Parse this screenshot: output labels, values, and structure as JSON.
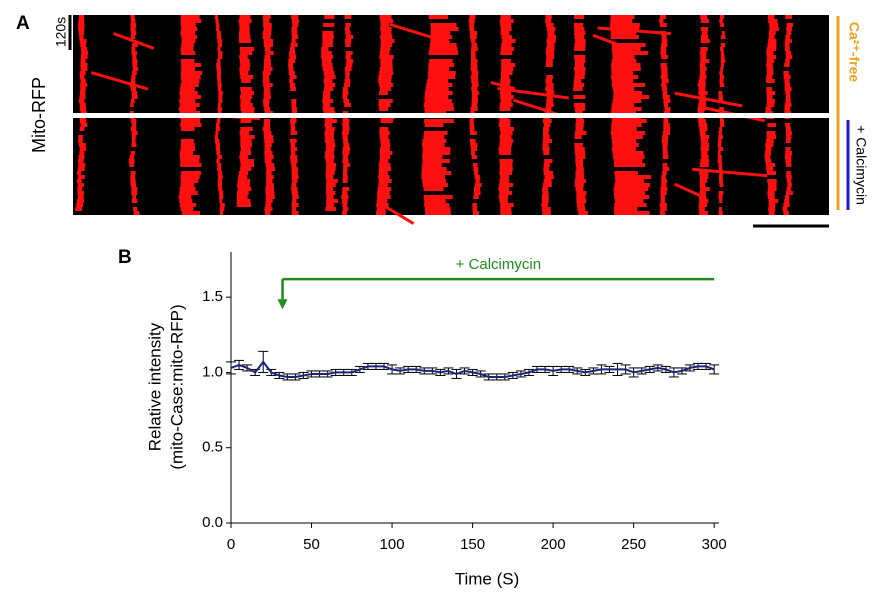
{
  "panel_a": {
    "label": "A",
    "scale_label": "120s",
    "y_label": "Mito-RFP",
    "condition_1": "Ca²⁺-free",
    "condition_2": "+ Calcimycin"
  },
  "chart_data": {
    "type": "line",
    "panel_label": "B",
    "xlabel": "Time (S)",
    "ylabel": [
      "Relative intensity",
      "(mito-Case:mito-RFP)"
    ],
    "x": [
      0,
      5,
      10,
      15,
      20,
      25,
      30,
      35,
      40,
      45,
      50,
      55,
      60,
      65,
      70,
      75,
      80,
      85,
      90,
      95,
      100,
      105,
      110,
      115,
      120,
      125,
      130,
      135,
      140,
      145,
      150,
      155,
      160,
      165,
      170,
      175,
      180,
      185,
      190,
      195,
      200,
      205,
      210,
      215,
      220,
      225,
      230,
      235,
      240,
      245,
      250,
      255,
      260,
      265,
      270,
      275,
      280,
      285,
      290,
      295,
      300
    ],
    "series": [
      {
        "color": "#1a237e",
        "values": [
          1.03,
          1.05,
          1.03,
          1.0,
          1.07,
          1.0,
          0.98,
          0.97,
          0.97,
          0.98,
          0.99,
          0.99,
          0.99,
          1.0,
          1.0,
          1.0,
          1.02,
          1.04,
          1.04,
          1.04,
          1.02,
          1.01,
          1.02,
          1.02,
          1.01,
          1.01,
          1.0,
          1.01,
          0.99,
          1.01,
          1.0,
          0.99,
          0.97,
          0.97,
          0.97,
          0.98,
          0.99,
          1.0,
          1.02,
          1.02,
          1.01,
          1.02,
          1.02,
          1.01,
          1.0,
          1.01,
          1.02,
          1.02,
          1.02,
          1.02,
          1.0,
          1.01,
          1.02,
          1.03,
          1.02,
          1.0,
          1.01,
          1.03,
          1.04,
          1.04,
          1.02
        ],
        "errors": [
          0.04,
          0.03,
          0.02,
          0.02,
          0.07,
          0.02,
          0.02,
          0.02,
          0.02,
          0.02,
          0.02,
          0.02,
          0.02,
          0.02,
          0.02,
          0.02,
          0.02,
          0.02,
          0.02,
          0.02,
          0.03,
          0.02,
          0.02,
          0.02,
          0.02,
          0.02,
          0.02,
          0.02,
          0.03,
          0.02,
          0.02,
          0.02,
          0.02,
          0.02,
          0.02,
          0.02,
          0.02,
          0.02,
          0.02,
          0.02,
          0.03,
          0.02,
          0.02,
          0.02,
          0.02,
          0.02,
          0.03,
          0.02,
          0.04,
          0.03,
          0.03,
          0.02,
          0.02,
          0.02,
          0.02,
          0.03,
          0.02,
          0.02,
          0.02,
          0.02,
          0.03
        ]
      }
    ],
    "error_color": "#000000",
    "xlim": [
      0,
      303
    ],
    "ylim": [
      0,
      1.8
    ],
    "xticks": [
      0,
      50,
      100,
      150,
      200,
      250,
      300
    ],
    "yticks": [
      {
        "value": 0,
        "label": "0.0"
      },
      0.5,
      {
        "value": 1,
        "label": "1.0"
      },
      1.5
    ],
    "annotation": {
      "text": "+ Calcimycin",
      "x_start": 32,
      "x_end": 300,
      "y": 1.62,
      "arrow_y": 1.42,
      "color": "#1e8c1e"
    }
  }
}
